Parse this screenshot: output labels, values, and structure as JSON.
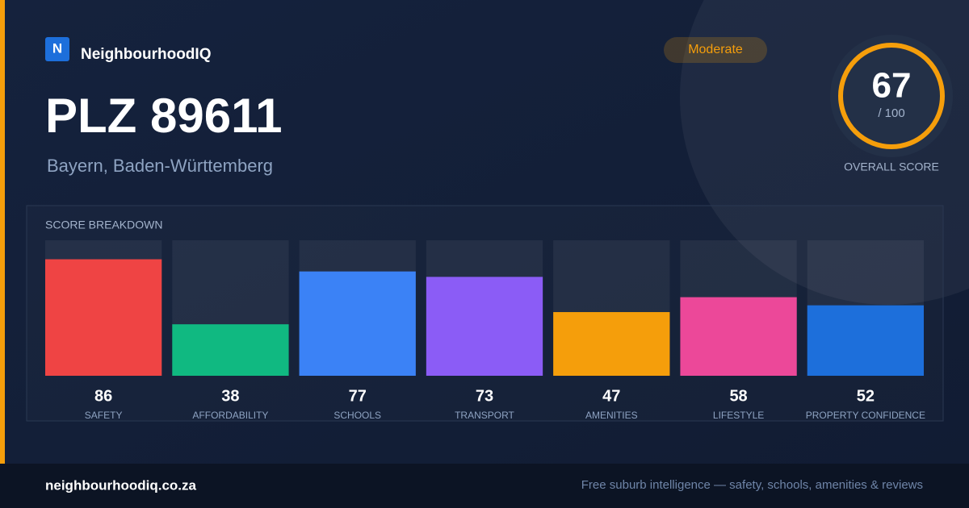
{
  "brand": {
    "logo": "N",
    "name": "NeighbourhoodIQ"
  },
  "badge": "Moderate",
  "title": "PLZ 89611",
  "subtitle": "Bayern, Baden-Württemberg",
  "overall": {
    "score": 67,
    "out_of": "/ 100",
    "label": "OVERALL SCORE"
  },
  "chart_data": {
    "type": "bar",
    "title": "SCORE BREAKDOWN",
    "categories": [
      "SAFETY",
      "AFFORDABILITY",
      "SCHOOLS",
      "TRANSPORT",
      "AMENITIES",
      "LIFESTYLE",
      "PROPERTY CONFIDENCE"
    ],
    "values": [
      86,
      38,
      77,
      73,
      47,
      58,
      52
    ],
    "colors": [
      "#ef4444",
      "#10b981",
      "#3b82f6",
      "#8b5cf6",
      "#f59e0b",
      "#ec4899",
      "#1d6fdb"
    ],
    "ylim": [
      0,
      100
    ]
  },
  "footer": {
    "url": "neighbourhoodiq.co.za",
    "tagline": "Free suburb intelligence — safety, schools, amenities & reviews"
  }
}
